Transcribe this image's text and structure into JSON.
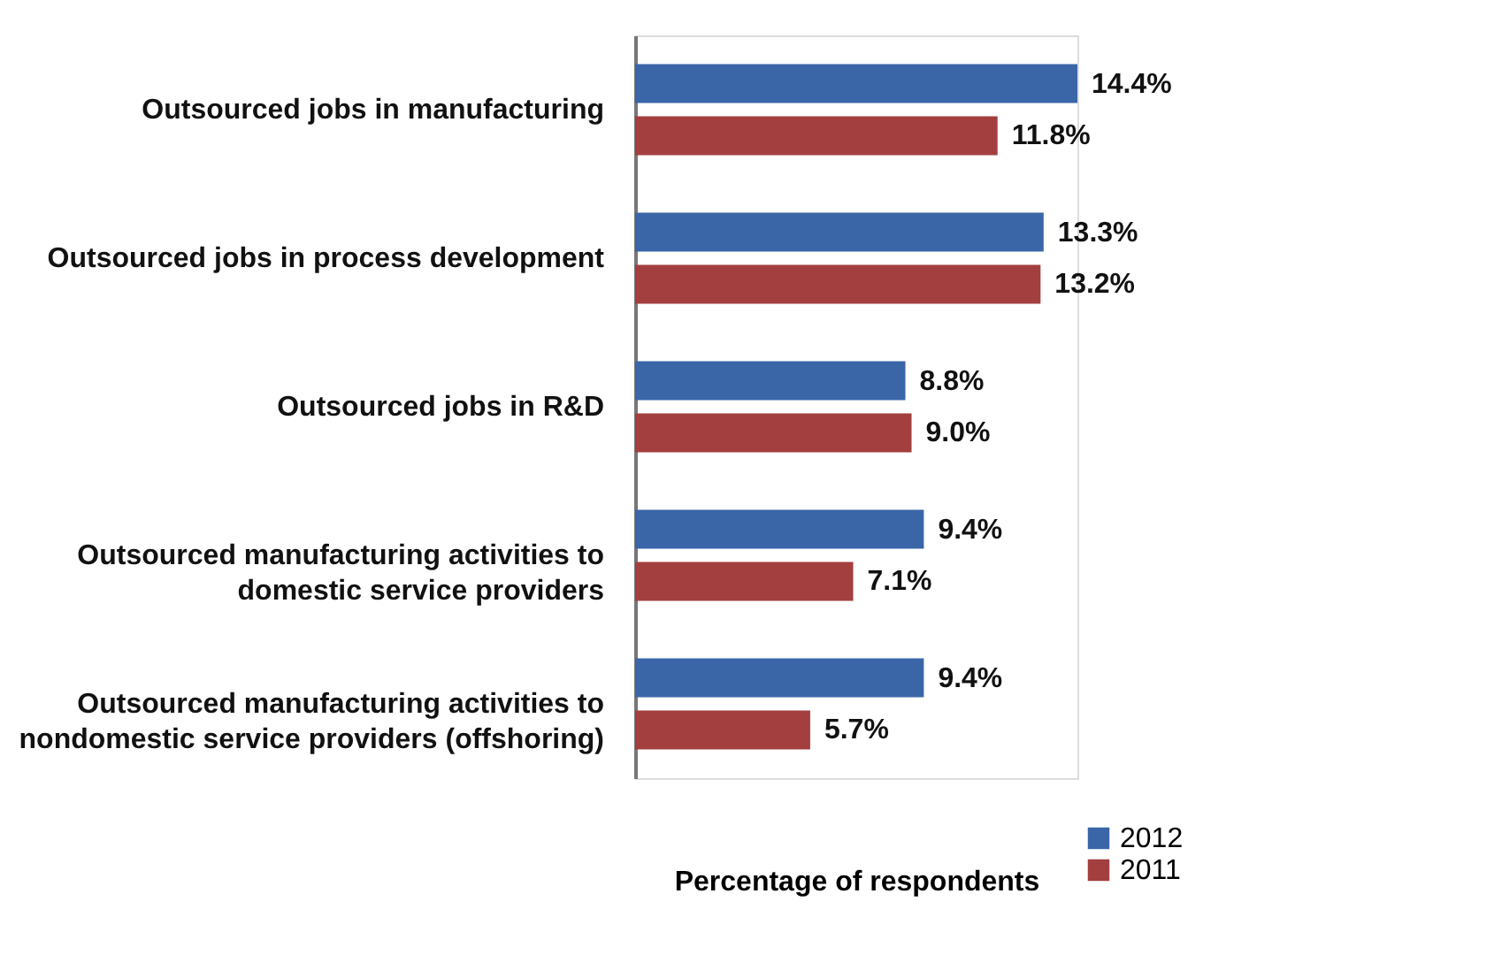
{
  "chart_data": {
    "type": "bar",
    "orientation": "horizontal",
    "xlabel": "Percentage of respondents",
    "categories": [
      "Outsourced jobs in manufacturing",
      "Outsourced jobs in process development",
      "Outsourced jobs in R&D",
      "Outsourced manufacturing activities to domestic service providers",
      "Outsourced manufacturing activities to nondomestic service providers (offshoring)"
    ],
    "series": [
      {
        "name": "2012",
        "color": "#3a66a8",
        "values": [
          14.4,
          13.3,
          8.8,
          9.4,
          9.4
        ],
        "value_labels": [
          "14.4%",
          "13.3%",
          "8.8%",
          "9.4%",
          "9.4%"
        ]
      },
      {
        "name": "2011",
        "color": "#a33f3f",
        "values": [
          11.8,
          13.2,
          9.0,
          7.1,
          5.7
        ],
        "value_labels": [
          "11.8%",
          "13.2%",
          "9.0%",
          "7.1%",
          "5.7%"
        ]
      }
    ],
    "legend": "bottom right",
    "grid": false
  }
}
